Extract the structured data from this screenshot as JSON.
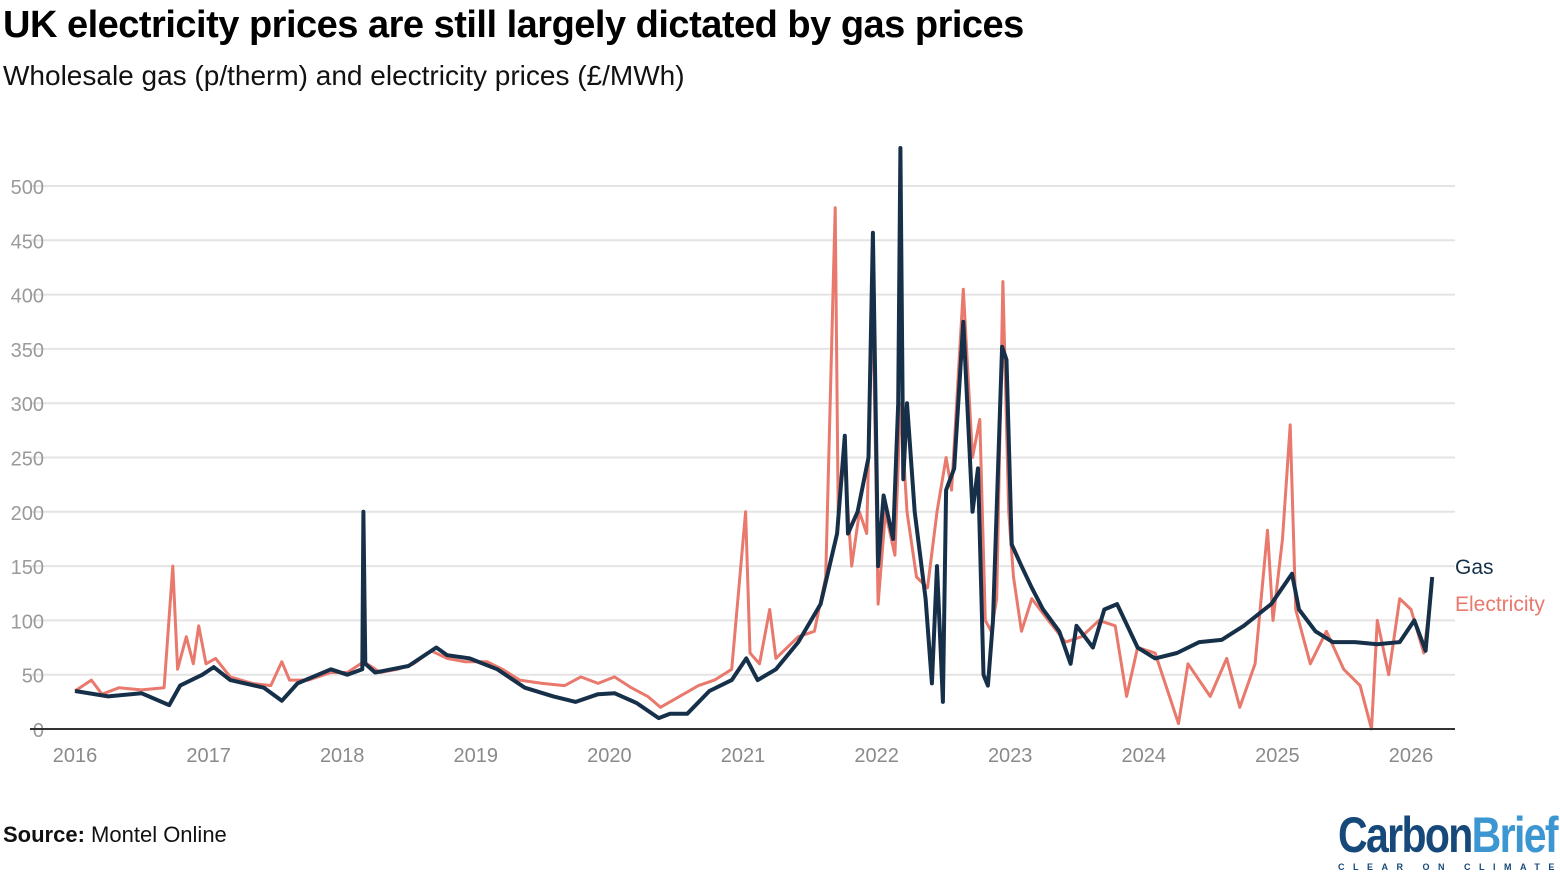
{
  "title": "UK electricity prices are still largely dictated by gas prices",
  "subtitle": "Wholesale gas (p/therm) and electricity prices (£/MWh)",
  "source_label": "Source:",
  "source_text": "Montel Online",
  "logo": {
    "word1": "Carbon",
    "word2": "Brief",
    "tagline": "CLEAR ON CLIMATE"
  },
  "chart_data": {
    "type": "line",
    "title": "UK electricity prices are still largely dictated by gas prices",
    "subtitle": "Wholesale gas (p/therm) and electricity prices (£/MWh)",
    "xlabel": "",
    "ylabel": "",
    "ylim": [
      0,
      540
    ],
    "xlim": [
      "2016-01-01",
      "2026-05-15"
    ],
    "yticks": [
      0,
      50,
      100,
      150,
      200,
      250,
      300,
      350,
      400,
      450,
      500
    ],
    "xticks": [
      "2016",
      "2017",
      "2018",
      "2019",
      "2020",
      "2021",
      "2022",
      "2023",
      "2024",
      "2025",
      "2026"
    ],
    "grid": true,
    "legend": "end-of-line labels, right",
    "series": [
      {
        "name": "Electricity",
        "color": "#e8796c",
        "points": [
          [
            "2016-01-01",
            35
          ],
          [
            "2016-02-15",
            45
          ],
          [
            "2016-03-15",
            32
          ],
          [
            "2016-05-01",
            38
          ],
          [
            "2016-07-01",
            36
          ],
          [
            "2016-09-01",
            38
          ],
          [
            "2016-09-25",
            150
          ],
          [
            "2016-10-08",
            55
          ],
          [
            "2016-11-01",
            85
          ],
          [
            "2016-11-20",
            60
          ],
          [
            "2016-12-05",
            95
          ],
          [
            "2016-12-25",
            60
          ],
          [
            "2017-01-20",
            65
          ],
          [
            "2017-03-01",
            48
          ],
          [
            "2017-05-01",
            42
          ],
          [
            "2017-06-20",
            40
          ],
          [
            "2017-07-20",
            62
          ],
          [
            "2017-08-10",
            45
          ],
          [
            "2017-10-01",
            45
          ],
          [
            "2017-12-01",
            52
          ],
          [
            "2018-01-15",
            52
          ],
          [
            "2018-03-01",
            62
          ],
          [
            "2018-04-15",
            52
          ],
          [
            "2018-06-01",
            55
          ],
          [
            "2018-07-15",
            60
          ],
          [
            "2018-09-01",
            72
          ],
          [
            "2018-10-15",
            65
          ],
          [
            "2018-12-01",
            62
          ],
          [
            "2019-02-01",
            62
          ],
          [
            "2019-03-15",
            55
          ],
          [
            "2019-05-01",
            45
          ],
          [
            "2019-07-01",
            42
          ],
          [
            "2019-09-01",
            40
          ],
          [
            "2019-10-15",
            48
          ],
          [
            "2019-12-01",
            42
          ],
          [
            "2020-01-15",
            48
          ],
          [
            "2020-03-01",
            38
          ],
          [
            "2020-04-15",
            30
          ],
          [
            "2020-05-20",
            20
          ],
          [
            "2020-07-01",
            28
          ],
          [
            "2020-09-01",
            40
          ],
          [
            "2020-10-15",
            45
          ],
          [
            "2020-12-01",
            55
          ],
          [
            "2021-01-08",
            200
          ],
          [
            "2021-01-20",
            70
          ],
          [
            "2021-02-15",
            60
          ],
          [
            "2021-03-15",
            110
          ],
          [
            "2021-04-01",
            65
          ],
          [
            "2021-06-01",
            85
          ],
          [
            "2021-07-15",
            90
          ],
          [
            "2021-08-15",
            140
          ],
          [
            "2021-09-10",
            480
          ],
          [
            "2021-09-18",
            200
          ],
          [
            "2021-10-05",
            250
          ],
          [
            "2021-10-25",
            150
          ],
          [
            "2021-11-15",
            200
          ],
          [
            "2021-12-05",
            180
          ],
          [
            "2021-12-21",
            405
          ],
          [
            "2022-01-05",
            115
          ],
          [
            "2022-01-25",
            200
          ],
          [
            "2022-02-20",
            160
          ],
          [
            "2022-03-07",
            300
          ],
          [
            "2022-03-25",
            200
          ],
          [
            "2022-04-20",
            140
          ],
          [
            "2022-05-20",
            130
          ],
          [
            "2022-06-15",
            200
          ],
          [
            "2022-07-10",
            250
          ],
          [
            "2022-07-25",
            220
          ],
          [
            "2022-08-26",
            405
          ],
          [
            "2022-09-20",
            250
          ],
          [
            "2022-10-10",
            285
          ],
          [
            "2022-10-25",
            100
          ],
          [
            "2022-11-10",
            90
          ],
          [
            "2022-11-25",
            120
          ],
          [
            "2022-12-12",
            412
          ],
          [
            "2022-12-28",
            200
          ],
          [
            "2023-01-10",
            140
          ],
          [
            "2023-02-01",
            90
          ],
          [
            "2023-03-01",
            120
          ],
          [
            "2023-04-15",
            100
          ],
          [
            "2023-06-01",
            80
          ],
          [
            "2023-07-15",
            85
          ],
          [
            "2023-09-01",
            100
          ],
          [
            "2023-10-15",
            95
          ],
          [
            "2023-11-15",
            30
          ],
          [
            "2023-12-15",
            75
          ],
          [
            "2024-02-01",
            70
          ],
          [
            "2024-04-05",
            5
          ],
          [
            "2024-05-01",
            60
          ],
          [
            "2024-07-01",
            30
          ],
          [
            "2024-08-15",
            65
          ],
          [
            "2024-09-20",
            20
          ],
          [
            "2024-11-01",
            60
          ],
          [
            "2024-12-05",
            183
          ],
          [
            "2024-12-20",
            100
          ],
          [
            "2025-01-15",
            175
          ],
          [
            "2025-02-05",
            280
          ],
          [
            "2025-02-20",
            110
          ],
          [
            "2025-04-01",
            60
          ],
          [
            "2025-05-15",
            90
          ],
          [
            "2025-07-01",
            55
          ],
          [
            "2025-08-15",
            40
          ],
          [
            "2025-09-15",
            0
          ],
          [
            "2025-10-01",
            100
          ],
          [
            "2025-11-01",
            50
          ],
          [
            "2025-12-01",
            120
          ],
          [
            "2026-01-01",
            110
          ],
          [
            "2026-02-05",
            70
          ],
          [
            "2026-02-25",
            125
          ]
        ]
      },
      {
        "name": "Gas",
        "color": "#17304a",
        "points": [
          [
            "2016-01-01",
            35
          ],
          [
            "2016-04-01",
            30
          ],
          [
            "2016-07-01",
            33
          ],
          [
            "2016-09-15",
            22
          ],
          [
            "2016-10-15",
            40
          ],
          [
            "2016-12-15",
            50
          ],
          [
            "2017-01-15",
            57
          ],
          [
            "2017-03-01",
            45
          ],
          [
            "2017-06-01",
            38
          ],
          [
            "2017-07-20",
            26
          ],
          [
            "2017-09-01",
            42
          ],
          [
            "2017-12-01",
            55
          ],
          [
            "2018-01-15",
            50
          ],
          [
            "2018-02-25",
            55
          ],
          [
            "2018-02-28",
            200
          ],
          [
            "2018-03-05",
            60
          ],
          [
            "2018-04-01",
            52
          ],
          [
            "2018-07-01",
            58
          ],
          [
            "2018-09-15",
            75
          ],
          [
            "2018-10-15",
            68
          ],
          [
            "2018-12-15",
            65
          ],
          [
            "2019-03-01",
            55
          ],
          [
            "2019-05-15",
            38
          ],
          [
            "2019-08-01",
            30
          ],
          [
            "2019-10-01",
            25
          ],
          [
            "2019-12-01",
            32
          ],
          [
            "2020-01-15",
            33
          ],
          [
            "2020-03-15",
            24
          ],
          [
            "2020-05-15",
            10
          ],
          [
            "2020-06-15",
            14
          ],
          [
            "2020-08-01",
            14
          ],
          [
            "2020-10-01",
            35
          ],
          [
            "2020-12-01",
            45
          ],
          [
            "2021-01-10",
            65
          ],
          [
            "2021-02-10",
            45
          ],
          [
            "2021-04-01",
            55
          ],
          [
            "2021-06-01",
            80
          ],
          [
            "2021-08-01",
            115
          ],
          [
            "2021-09-15",
            180
          ],
          [
            "2021-10-06",
            270
          ],
          [
            "2021-10-15",
            180
          ],
          [
            "2021-11-10",
            200
          ],
          [
            "2021-12-10",
            250
          ],
          [
            "2021-12-22",
            457
          ],
          [
            "2022-01-05",
            150
          ],
          [
            "2022-01-20",
            215
          ],
          [
            "2022-02-15",
            175
          ],
          [
            "2022-03-01",
            300
          ],
          [
            "2022-03-07",
            535
          ],
          [
            "2022-03-15",
            230
          ],
          [
            "2022-03-25",
            300
          ],
          [
            "2022-04-15",
            200
          ],
          [
            "2022-05-15",
            120
          ],
          [
            "2022-06-01",
            42
          ],
          [
            "2022-06-15",
            150
          ],
          [
            "2022-07-01",
            25
          ],
          [
            "2022-07-10",
            220
          ],
          [
            "2022-08-01",
            240
          ],
          [
            "2022-08-26",
            375
          ],
          [
            "2022-09-20",
            200
          ],
          [
            "2022-10-05",
            240
          ],
          [
            "2022-10-20",
            50
          ],
          [
            "2022-11-01",
            40
          ],
          [
            "2022-11-15",
            100
          ],
          [
            "2022-12-10",
            352
          ],
          [
            "2022-12-22",
            340
          ],
          [
            "2023-01-05",
            170
          ],
          [
            "2023-02-01",
            150
          ],
          [
            "2023-03-01",
            130
          ],
          [
            "2023-04-01",
            110
          ],
          [
            "2023-05-15",
            90
          ],
          [
            "2023-06-15",
            60
          ],
          [
            "2023-07-01",
            95
          ],
          [
            "2023-08-15",
            75
          ],
          [
            "2023-09-15",
            110
          ],
          [
            "2023-10-20",
            115
          ],
          [
            "2023-12-15",
            75
          ],
          [
            "2024-02-01",
            65
          ],
          [
            "2024-04-01",
            70
          ],
          [
            "2024-06-01",
            80
          ],
          [
            "2024-08-01",
            82
          ],
          [
            "2024-10-01",
            95
          ],
          [
            "2024-12-15",
            115
          ],
          [
            "2025-02-10",
            143
          ],
          [
            "2025-03-01",
            110
          ],
          [
            "2025-04-15",
            90
          ],
          [
            "2025-06-01",
            80
          ],
          [
            "2025-08-01",
            80
          ],
          [
            "2025-10-01",
            78
          ],
          [
            "2025-12-01",
            80
          ],
          [
            "2026-01-10",
            100
          ],
          [
            "2026-02-10",
            72
          ],
          [
            "2026-02-28",
            140
          ]
        ]
      }
    ]
  }
}
